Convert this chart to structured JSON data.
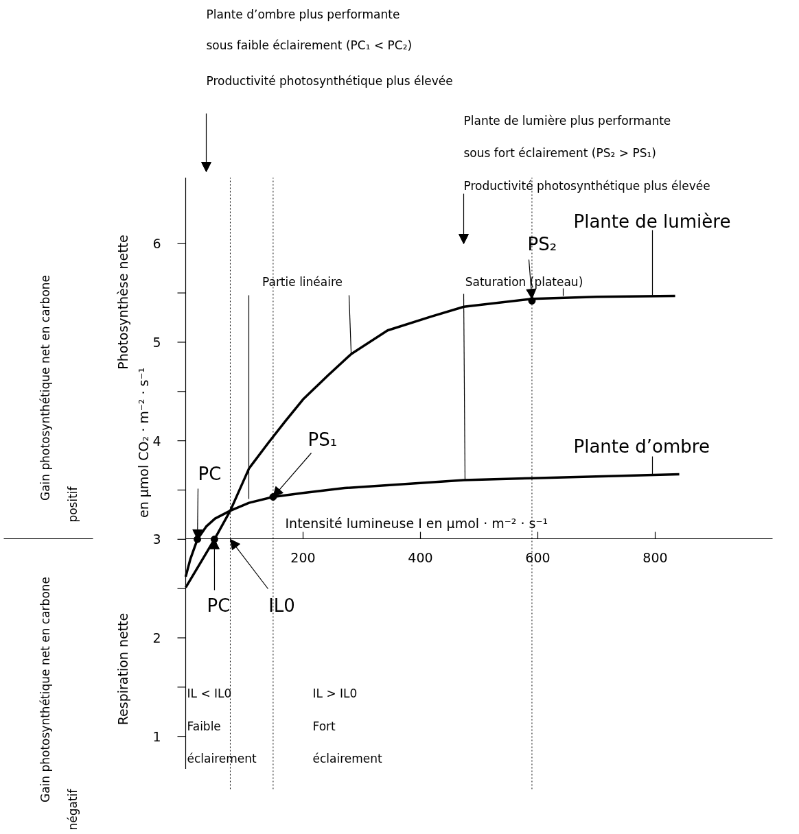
{
  "chart_data": {
    "type": "line",
    "xlim": [
      0,
      1000
    ],
    "ylim": [
      0.67,
      6.67
    ],
    "xticks": [
      200,
      400,
      600,
      800
    ],
    "yticks": [
      1,
      {
        "value": 1.5,
        "label": null
      },
      2,
      {
        "value": 2.5,
        "label": null
      },
      3,
      {
        "value": 3.5,
        "label": null
      },
      4,
      {
        "value": 4.5,
        "label": null
      },
      5,
      {
        "value": 5.5,
        "label": null
      },
      6
    ],
    "xlabel": "Intensité lumineuse I en µmol · m⁻² · s⁻¹",
    "grid": false,
    "line_style": "solid",
    "series": [
      {
        "name": "Plante de lumière",
        "color": "#000000",
        "x": [
          0,
          25,
          49,
          76,
          108,
          141,
          170,
          200,
          242,
          282,
          344,
          418,
          474,
          590,
          700,
          834
        ],
        "values": [
          2.51,
          2.76,
          3.0,
          3.29,
          3.72,
          3.98,
          4.2,
          4.42,
          4.66,
          4.88,
          5.12,
          5.26,
          5.36,
          5.44,
          5.46,
          5.47
        ]
      },
      {
        "name": "Plante d’ombre",
        "color": "#000000",
        "x": [
          0,
          8,
          20,
          35,
          50,
          76,
          108,
          149,
          200,
          271,
          474,
          590,
          841
        ],
        "values": [
          2.62,
          2.8,
          3.0,
          3.13,
          3.21,
          3.29,
          3.37,
          3.43,
          3.47,
          3.52,
          3.6,
          3.62,
          3.66
        ]
      },
      {
        "type": "scatter",
        "marker": "circle",
        "color": "#000000",
        "x": [
          20,
          49,
          149,
          590
        ],
        "values": [
          3.0,
          3.0,
          3.43,
          5.42
        ]
      }
    ],
    "ref_lines": [
      {
        "axis": "x",
        "value": 76,
        "line_style": "dotted"
      },
      {
        "axis": "x",
        "value": 149,
        "line_style": "dotted"
      },
      {
        "axis": "x",
        "value": 590,
        "line_style": "dotted"
      }
    ],
    "annotations": [
      "Plante d’ombre plus performante\nsous faible éclairement (PC₁ < PC₂)\nProductivité photosynthétique plus élevée",
      "Plante de lumière plus performante\nsous fort éclairement (PS₂ > PS₁)\nProductivité photosynthétique plus élevée",
      {
        "text": "PS₂",
        "x": 590,
        "y": 5.44
      },
      {
        "text": "PS₁",
        "x": 149,
        "y": 3.43
      },
      {
        "text": "PC",
        "x": 20,
        "y": 3.0
      },
      {
        "text": "PC",
        "x": 49,
        "y": 3.0
      },
      {
        "text": "IL0",
        "x": 76,
        "y": 3.0
      },
      {
        "text": "Partie linéaire",
        "x": 282,
        "y": 4.88
      },
      {
        "text": "Saturation (plateau)",
        "x": 476,
        "y": 3.6
      },
      "IL < IL0\nFaible\néclairement",
      "IL > IL0\nFort\néclairement",
      "Photosynthèse nette",
      "en µmol CO₂ · m⁻² · s⁻¹",
      "Respiration nette",
      "Gain photosynthétique net en carbone\npositif",
      "Gain photosynthétique net en carbone\nnégatif"
    ]
  }
}
